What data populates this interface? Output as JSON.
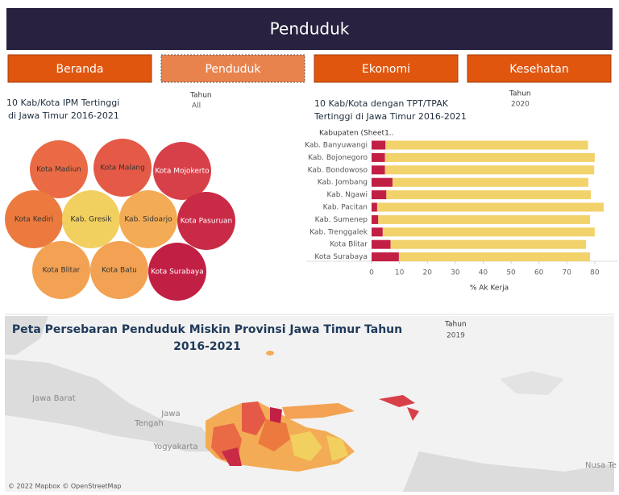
{
  "header": {
    "title": "Penduduk"
  },
  "nav": [
    "Beranda",
    "Penduduk",
    "Ekonomi",
    "Kesehatan"
  ],
  "chart_data": [
    {
      "type": "bubble",
      "title_lines": [
        "10 Kab/Kota IPM Tertinggi",
        "di Jawa Timur 2016-2021"
      ],
      "filter": {
        "label": "Tahun",
        "value": "All"
      },
      "categories": [
        "Kota Madiun",
        "Kota Malang",
        "Kota Mojokerto",
        "Kota Kediri",
        "Kab. Gresik",
        "Kab. Sidoarjo",
        "Kota Pasuruan",
        "Kota Blitar",
        "Kota Batu",
        "Kota Surabaya"
      ],
      "colors": [
        "#e96a45",
        "#e45a47",
        "#d84049",
        "#ec7a3e",
        "#f1d05f",
        "#f3ac55",
        "#c92a45",
        "#f3a253",
        "#f3a253",
        "#c21f45"
      ]
    },
    {
      "type": "bar",
      "orientation": "horizontal",
      "stacked": true,
      "title_lines": [
        "10 Kab/Kota dengan TPT/TPAK",
        "Tertinggi di Jawa Timur 2016-2021"
      ],
      "filter": {
        "label": "Tahun",
        "value": "2020"
      },
      "y_header": "Kabupaten (Sheet1..",
      "x_label": "% Ak Kerja",
      "categories": [
        "Kab. Banyuwangi",
        "Kab. Bojonegoro",
        "Kab. Bondowoso",
        "Kab. Jombang",
        "Kab. Ngawi",
        "Kab. Pacitan",
        "Kab. Sumenep",
        "Kab. Trenggalek",
        "Kota Blitar",
        "Kota Surabaya"
      ],
      "series": [
        {
          "color": "#c21f45",
          "values": [
            5.0,
            4.8,
            4.8,
            7.5,
            5.3,
            2.0,
            2.4,
            4.0,
            6.8,
            9.8
          ]
        },
        {
          "color": "#f2d26a",
          "values": [
            72.6,
            75.2,
            75.0,
            70.2,
            73.3,
            81.2,
            75.9,
            76.0,
            70.1,
            68.5
          ]
        }
      ],
      "xlim": [
        0,
        83.5
      ],
      "xticks": [
        0,
        10,
        20,
        30,
        40,
        50,
        60,
        70,
        80
      ]
    }
  ],
  "map": {
    "title_lines": [
      "Peta Persebaran Penduduk Miskin Provinsi Jawa Timur Tahun",
      "2016-2021"
    ],
    "filter": {
      "label": "Tahun",
      "value": "2019"
    },
    "place_labels": [
      "Jawa Barat",
      "Jawa",
      "Tengah",
      "Yogyakarta",
      "Nusa Te"
    ],
    "attribution": "© 2022 Mapbox © OpenStreetMap"
  }
}
